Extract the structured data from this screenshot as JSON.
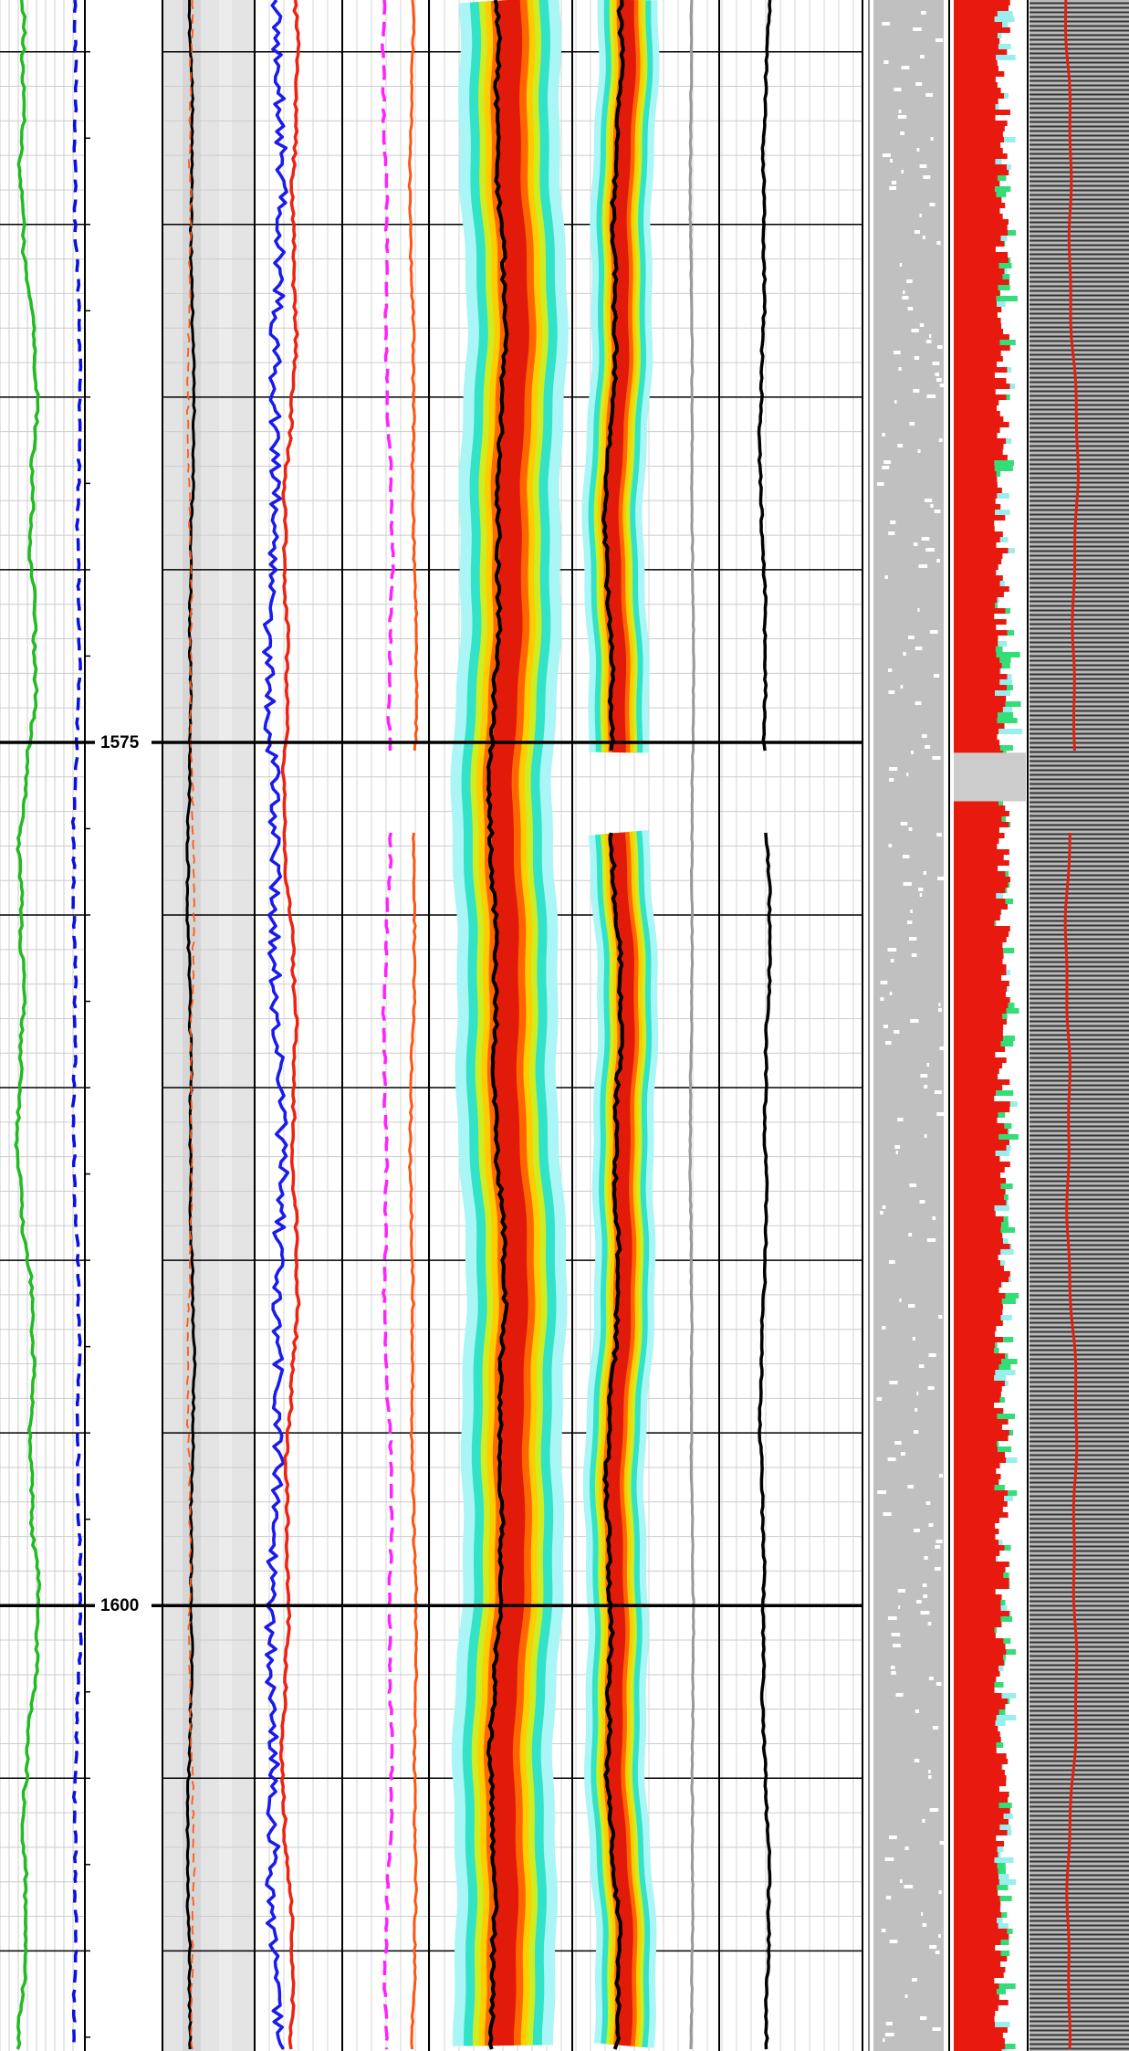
{
  "depth_axis": {
    "ylim": [
      1553.5,
      1612.9
    ],
    "labeled_ticks": [
      {
        "value": 1575,
        "label": "1575"
      },
      {
        "value": 1600,
        "label": "1600"
      }
    ],
    "grid_lines": [
      1555,
      1560,
      1565,
      1570,
      1575,
      1580,
      1585,
      1590,
      1595,
      1600,
      1605,
      1610
    ],
    "minor_ticks": [
      1555,
      1557.5,
      1560,
      1562.5,
      1565,
      1567.5,
      1570,
      1572.5,
      1575,
      1577.5,
      1580,
      1582.5,
      1585,
      1587.5,
      1590,
      1592.5,
      1595,
      1597.5,
      1600,
      1602.5,
      1605,
      1607.5,
      1610,
      1612.5
    ]
  }
}
